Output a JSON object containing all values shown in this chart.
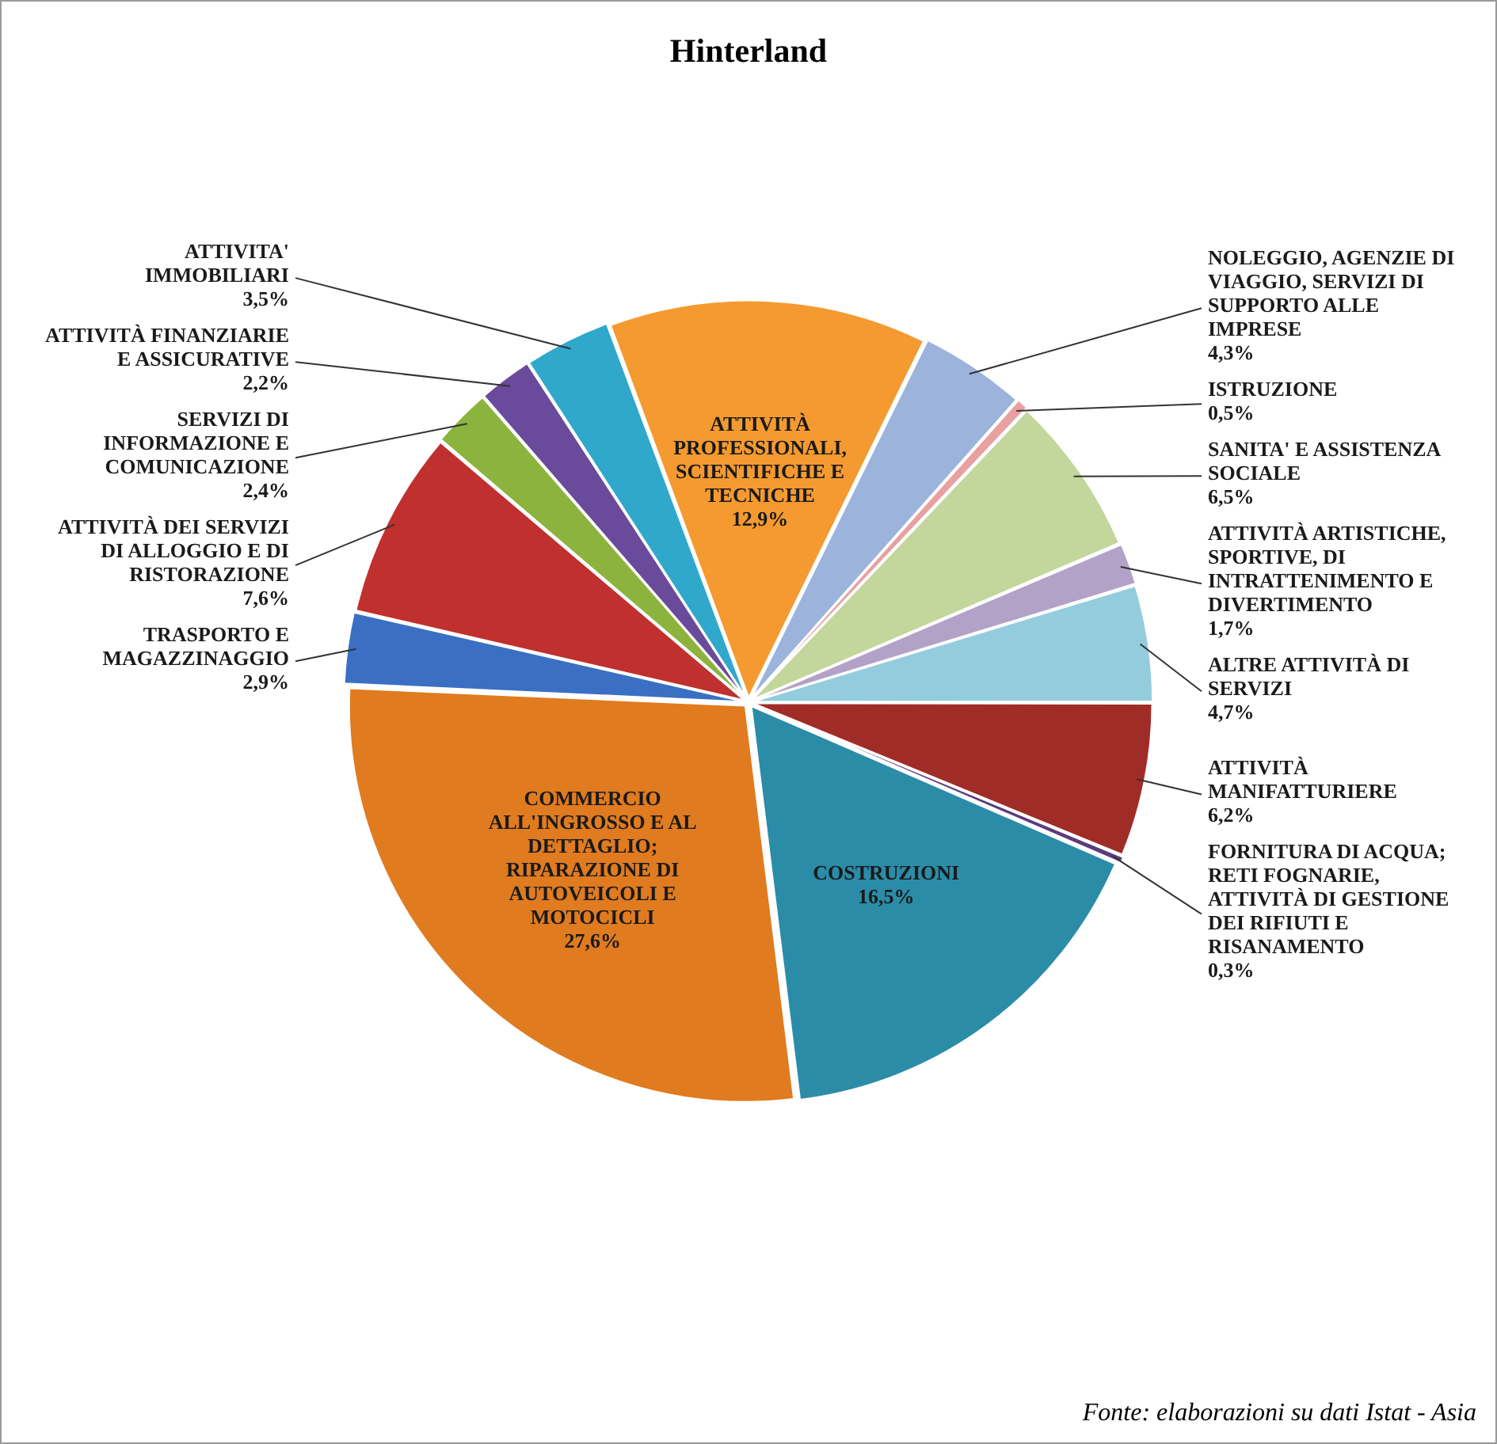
{
  "chart_data": {
    "type": "pie",
    "title": "Hinterland",
    "categories": [
      "ATTIVITÀ MANIFATTURIERE",
      "FORNITURA DI ACQUA; RETI FOGNARIE, ATTIVITÀ DI GESTIONE DEI RIFIUTI E RISANAMENTO",
      "COSTRUZIONI",
      "COMMERCIO ALL'INGROSSO E AL DETTAGLIO; RIPARAZIONE DI AUTOVEICOLI E MOTOCICLI",
      "TRASPORTO E MAGAZZINAGGIO",
      "ATTIVITÀ DEI SERVIZI DI ALLOGGIO E DI RISTORAZIONE",
      "SERVIZI DI INFORMAZIONE E COMUNICAZIONE",
      "ATTIVITÀ FINANZIARIE E ASSICURATIVE",
      "ATTIVITA' IMMOBILIARI",
      "ATTIVITÀ PROFESSIONALI, SCIENTIFICHE E TECNICHE",
      "NOLEGGIO, AGENZIE DI VIAGGIO, SERVIZI DI SUPPORTO ALLE IMPRESE",
      "ISTRUZIONE",
      "SANITA' E ASSISTENZA SOCIALE",
      "ATTIVITÀ ARTISTICHE, SPORTIVE, DI INTRATTENIMENTO E DIVERTIMENTO",
      "ALTRE ATTIVITÀ DI SERVIZI"
    ],
    "values": [
      6.2,
      0.3,
      16.5,
      27.6,
      2.9,
      7.6,
      2.4,
      2.2,
      3.5,
      12.9,
      4.3,
      0.5,
      6.5,
      1.7,
      4.7
    ],
    "colors": [
      "#a02c28",
      "#5b3d7a",
      "#2b8ca8",
      "#e07b20",
      "#3a6fc4",
      "#c0302e",
      "#8db33f",
      "#6a4a9a",
      "#2fa8cc",
      "#f59a30",
      "#9cb3dc",
      "#e8a0a0",
      "#c3d69b",
      "#b3a2c7",
      "#93cddd"
    ],
    "value_labels": [
      "6,2%",
      "0,3%",
      "16,5%",
      "27,6%",
      "2,9%",
      "7,6%",
      "2,4%",
      "2,2%",
      "3,5%",
      "12,9%",
      "4,3%",
      "0,5%",
      "6,5%",
      "1,7%",
      "4,7%"
    ],
    "annotations": [
      "Fonte: elaborazioni su dati Istat - Asia"
    ]
  }
}
